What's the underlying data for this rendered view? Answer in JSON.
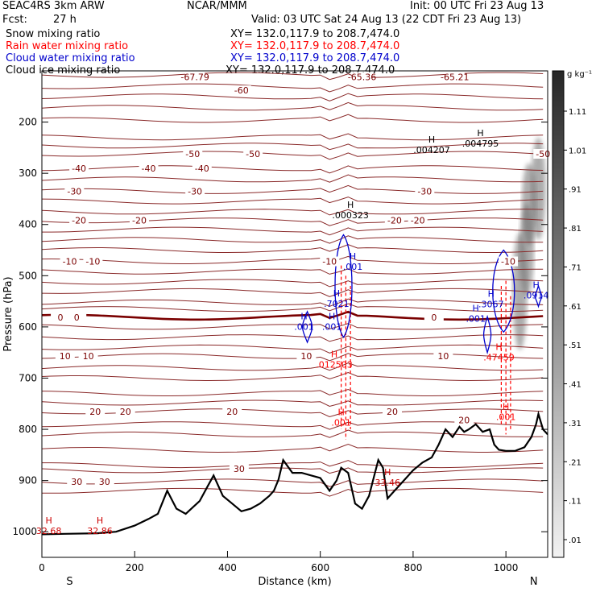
{
  "header": {
    "model": "SEAC4RS  3km ARW",
    "center": "NCAR/MMM",
    "init": "Init: 00 UTC Fri 23 Aug 13",
    "fcst_label": "Fcst:",
    "fcst_value": "27 h",
    "valid": "Valid: 03 UTC Sat 24 Aug 13 (22 CDT Fri 23 Aug 13)",
    "fields": [
      {
        "name": "Snow mixing ratio",
        "xy": "XY=  132.0,117.9 to 208.7,474.0",
        "color": "#000000"
      },
      {
        "name": "Rain water mixing ratio",
        "xy": "XY=  132.0,117.9 to 208.7,474.0",
        "color": "#ff0000"
      },
      {
        "name": "Cloud water mixing ratio",
        "xy": "XY=  132.0,117.9 to 208.7,474.0",
        "color": "#0000cc"
      },
      {
        "name": "Cloud ice mixing ratio",
        "xy": "XY=  132.0,117.9 to 208.7,474.0",
        "color": "#000000"
      }
    ]
  },
  "chart_data": {
    "type": "cross-section contour",
    "xlabel": "Distance (km)",
    "ylabel": "Pressure (hPa)",
    "xlim": [
      0,
      1090
    ],
    "ylim": [
      1050,
      100
    ],
    "x_ticks": [
      0,
      200,
      400,
      600,
      800,
      1000
    ],
    "y_ticks": [
      200,
      300,
      400,
      500,
      600,
      700,
      800,
      900,
      1000
    ],
    "left_end": "S",
    "right_end": "N",
    "isotherms_c": [
      -60,
      -50,
      -40,
      -30,
      -20,
      -10,
      0,
      10,
      20,
      30
    ],
    "isotherm_label_positions": [
      {
        "label": "-67.79",
        "x": 330,
        "p": 112
      },
      {
        "label": "-65.36",
        "x": 690,
        "p": 112
      },
      {
        "label": "-65.21",
        "x": 890,
        "p": 112
      },
      {
        "label": "-60",
        "x": 430,
        "p": 138
      },
      {
        "label": "-50",
        "x": 325,
        "p": 262
      },
      {
        "label": "-50",
        "x": 455,
        "p": 262
      },
      {
        "label": "-50",
        "x": 1080,
        "p": 262
      },
      {
        "label": "-40",
        "x": 80,
        "p": 290
      },
      {
        "label": "-40",
        "x": 230,
        "p": 290
      },
      {
        "label": "-40",
        "x": 345,
        "p": 290
      },
      {
        "label": "-30",
        "x": 70,
        "p": 335
      },
      {
        "label": "-30",
        "x": 330,
        "p": 335
      },
      {
        "label": "-30",
        "x": 825,
        "p": 335
      },
      {
        "label": "-20",
        "x": 80,
        "p": 392
      },
      {
        "label": "-20",
        "x": 210,
        "p": 392
      },
      {
        "label": "-20",
        "x": 760,
        "p": 392
      },
      {
        "label": "-20",
        "x": 810,
        "p": 392
      },
      {
        "label": "-10",
        "x": 60,
        "p": 472
      },
      {
        "label": "-10",
        "x": 110,
        "p": 472
      },
      {
        "label": "-10",
        "x": 620,
        "p": 472
      },
      {
        "label": "-10",
        "x": 1005,
        "p": 472
      },
      {
        "label": "0",
        "x": 40,
        "p": 581
      },
      {
        "label": "0",
        "x": 75,
        "p": 581
      },
      {
        "label": "0",
        "x": 845,
        "p": 581
      },
      {
        "label": "10",
        "x": 50,
        "p": 657
      },
      {
        "label": "10",
        "x": 100,
        "p": 657
      },
      {
        "label": "10",
        "x": 570,
        "p": 657
      },
      {
        "label": "10",
        "x": 865,
        "p": 657
      },
      {
        "label": "20",
        "x": 115,
        "p": 765
      },
      {
        "label": "20",
        "x": 180,
        "p": 765
      },
      {
        "label": "20",
        "x": 410,
        "p": 765
      },
      {
        "label": "20",
        "x": 755,
        "p": 765
      },
      {
        "label": "20",
        "x": 910,
        "p": 782
      },
      {
        "label": "30",
        "x": 75,
        "p": 902
      },
      {
        "label": "30",
        "x": 135,
        "p": 902
      },
      {
        "label": "30",
        "x": 425,
        "p": 877
      }
    ],
    "extrema": [
      {
        "kind": "H",
        "value": "32.68",
        "x": 15,
        "p": 1000,
        "color": "#cc0000"
      },
      {
        "kind": "H",
        "value": "32.86",
        "x": 125,
        "p": 1000,
        "color": "#cc0000"
      },
      {
        "kind": "H",
        "value": "33.46",
        "x": 745,
        "p": 905,
        "color": "#cc0000"
      },
      {
        "kind": "H",
        "value": ".004207",
        "x": 840,
        "p": 256,
        "color": "#000000"
      },
      {
        "kind": "H",
        "value": ".004795",
        "x": 945,
        "p": 243,
        "color": "#000000"
      },
      {
        "kind": "H",
        "value": ".000323",
        "x": 665,
        "p": 383,
        "color": "#000000"
      },
      {
        "kind": "H",
        "value": ".001",
        "x": 670,
        "p": 484,
        "color": "#0000cc"
      },
      {
        "kind": "H",
        "value": ".7021",
        "x": 635,
        "p": 556,
        "color": "#0000cc"
      },
      {
        "kind": "H",
        "value": ".001",
        "x": 565,
        "p": 601,
        "color": "#0000cc"
      },
      {
        "kind": "H",
        "value": ".001",
        "x": 625,
        "p": 601,
        "color": "#0000cc"
      },
      {
        "kind": "H",
        "value": ".3067",
        "x": 968,
        "p": 557,
        "color": "#0000cc"
      },
      {
        "kind": "H",
        "value": ".001",
        "x": 935,
        "p": 585,
        "color": "#0000cc"
      },
      {
        "kind": "H",
        "value": ".0914",
        "x": 1065,
        "p": 540,
        "color": "#0000cc"
      },
      {
        "kind": "H",
        "value": ".012503",
        "x": 630,
        "p": 675,
        "color": "#ff0000"
      },
      {
        "kind": "H",
        "value": ".47459",
        "x": 985,
        "p": 661,
        "color": "#ff0000"
      },
      {
        "kind": "H",
        "value": ".001",
        "x": 645,
        "p": 788,
        "color": "#ff0000"
      },
      {
        "kind": "H",
        "value": ".001",
        "x": 1000,
        "p": 777,
        "color": "#ff0000"
      }
    ],
    "terrain_pressure_hpa": [
      [
        0,
        1005
      ],
      [
        50,
        1004
      ],
      [
        120,
        1003
      ],
      [
        160,
        1000
      ],
      [
        200,
        988
      ],
      [
        230,
        975
      ],
      [
        250,
        965
      ],
      [
        270,
        920
      ],
      [
        290,
        955
      ],
      [
        310,
        965
      ],
      [
        340,
        940
      ],
      [
        355,
        915
      ],
      [
        370,
        890
      ],
      [
        390,
        930
      ],
      [
        410,
        945
      ],
      [
        430,
        960
      ],
      [
        450,
        955
      ],
      [
        470,
        945
      ],
      [
        490,
        930
      ],
      [
        500,
        920
      ],
      [
        510,
        898
      ],
      [
        520,
        860
      ],
      [
        540,
        885
      ],
      [
        560,
        885
      ],
      [
        580,
        890
      ],
      [
        600,
        895
      ],
      [
        620,
        920
      ],
      [
        635,
        900
      ],
      [
        645,
        875
      ],
      [
        660,
        885
      ],
      [
        675,
        945
      ],
      [
        690,
        955
      ],
      [
        705,
        930
      ],
      [
        715,
        895
      ],
      [
        725,
        860
      ],
      [
        735,
        875
      ],
      [
        745,
        935
      ],
      [
        760,
        920
      ],
      [
        780,
        900
      ],
      [
        800,
        880
      ],
      [
        820,
        865
      ],
      [
        840,
        855
      ],
      [
        855,
        830
      ],
      [
        870,
        800
      ],
      [
        885,
        815
      ],
      [
        900,
        795
      ],
      [
        910,
        805
      ],
      [
        920,
        800
      ],
      [
        935,
        790
      ],
      [
        950,
        805
      ],
      [
        965,
        800
      ],
      [
        975,
        830
      ],
      [
        985,
        840
      ],
      [
        1000,
        842
      ],
      [
        1020,
        842
      ],
      [
        1040,
        835
      ],
      [
        1055,
        815
      ],
      [
        1065,
        790
      ],
      [
        1070,
        770
      ],
      [
        1080,
        800
      ],
      [
        1090,
        810
      ]
    ],
    "colorbar": {
      "units": "g kg⁻¹",
      "ticks": [
        ".01",
        ".11",
        ".21",
        ".31",
        ".41",
        ".51",
        ".61",
        ".71",
        ".81",
        ".91",
        "1.01",
        "1.11"
      ]
    }
  }
}
